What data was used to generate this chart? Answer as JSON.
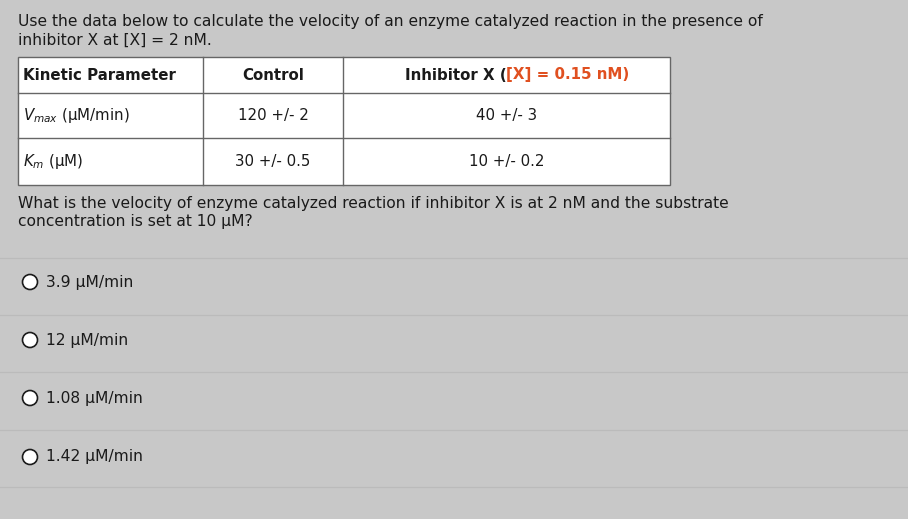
{
  "bg_color": "#c8c8c8",
  "title_line1": "Use the data below to calculate the velocity of an enzyme catalyzed reaction in the presence of",
  "title_line2": "inhibitor X at [X] = 2 nM.",
  "table_header0": "Kinetic Parameter",
  "table_header1": "Control",
  "table_header2_pre": "Inhibitor X (",
  "table_header2_mid": "[X] = 0.15 nM",
  "table_header2_post": ")",
  "table_row1_col0": "V",
  "table_row1_col0b": "max",
  "table_row1_col0c": " (μM/min)",
  "table_row1_col1": "120 +/- 2",
  "table_row1_col2": "40 +/- 3",
  "table_row2_col0a": "K",
  "table_row2_col0b": "m",
  "table_row2_col0c": " (μM)",
  "table_row2_col1": "30 +/- 0.5",
  "table_row2_col2": "10 +/- 0.2",
  "question_line1": "What is the velocity of enzyme catalyzed reaction if inhibitor X is at 2 nM and the substrate",
  "question_line2": "concentration is set at 10 μM?",
  "choices": [
    "3.9 μM/min",
    "12 μM/min",
    "1.08 μM/min",
    "1.42 μM/min"
  ],
  "text_color": "#1a1a1a",
  "red_color": "#e05020",
  "table_border_color": "#666666",
  "sep_color": "#bbbbbb",
  "table_bg": "#f0f0f0",
  "font_size_main": 11.2,
  "font_size_table": 10.8
}
